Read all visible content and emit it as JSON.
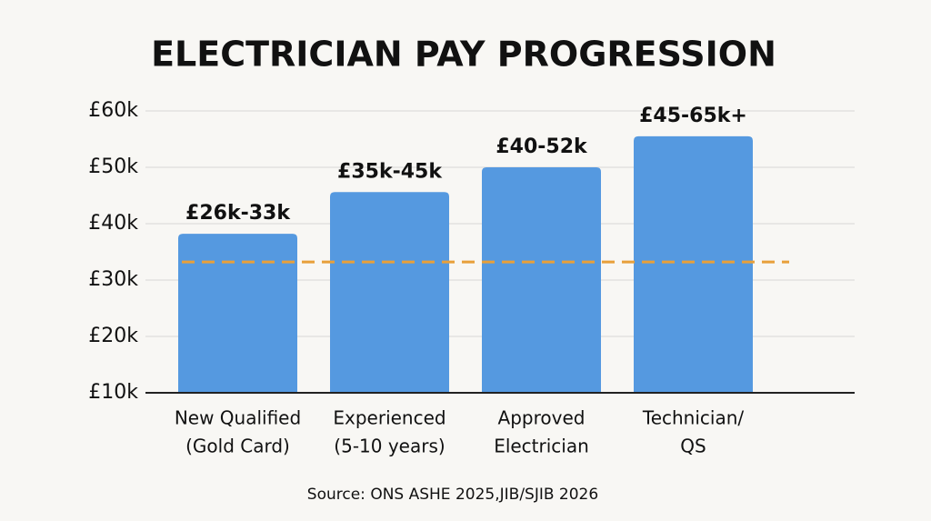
{
  "chart_data": {
    "type": "bar",
    "title": "ELECTRICIAN PAY PROGRESSION",
    "source": "Source: ONS ASHE 2025,JIB/SJIB 2026",
    "categories": [
      [
        "New Qualified",
        "(Gold Card)"
      ],
      [
        "Experienced",
        "(5-10 years)"
      ],
      [
        "Approved",
        "Electrician"
      ],
      [
        "Technician/",
        "QS"
      ]
    ],
    "values": [
      38.2,
      45.6,
      50,
      55.5
    ],
    "range_labels": [
      "£26k-33k",
      "£35k-45k",
      "£40-52k",
      "£45-65k+"
    ],
    "color": "#5599e0",
    "reference_line": {
      "value": 33.2,
      "color": "#e8a03a"
    },
    "ylim": [
      10,
      60
    ],
    "yticks": [
      {
        "value": 10,
        "label": "£10k"
      },
      {
        "value": 20,
        "label": "£20k"
      },
      {
        "value": 30,
        "label": "£30k"
      },
      {
        "value": 40,
        "label": "£40k"
      },
      {
        "value": 50,
        "label": "£50k"
      },
      {
        "value": 60,
        "label": "£60k"
      }
    ],
    "grid": true
  }
}
